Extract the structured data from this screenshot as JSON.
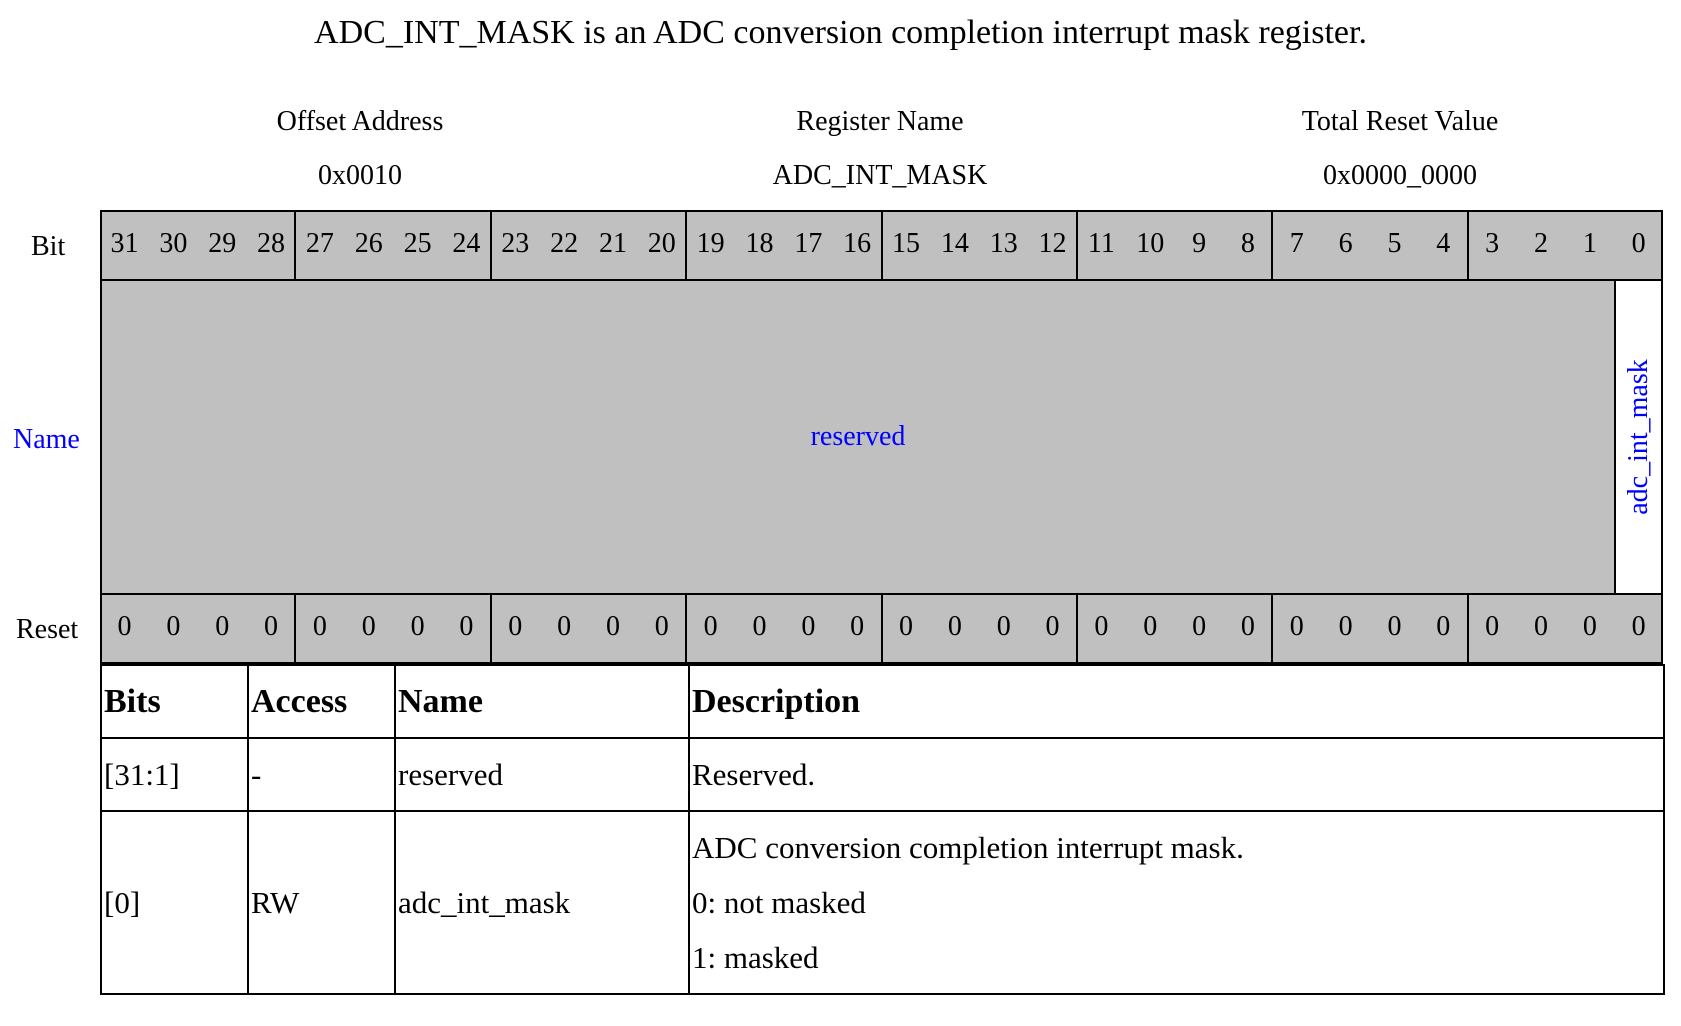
{
  "title": "ADC_INT_MASK is an ADC conversion completion interrupt mask register.",
  "header": {
    "offset_label": "Offset Address",
    "offset_value": "0x0010",
    "name_label": "Register Name",
    "name_value": "ADC_INT_MASK",
    "reset_label": "Total Reset Value",
    "reset_value": "0x0000_0000"
  },
  "row_labels": {
    "bit": "Bit",
    "name": "Name",
    "reset": "Reset"
  },
  "bits": [
    "31",
    "30",
    "29",
    "28",
    "27",
    "26",
    "25",
    "24",
    "23",
    "22",
    "21",
    "20",
    "19",
    "18",
    "17",
    "16",
    "15",
    "14",
    "13",
    "12",
    "11",
    "10",
    "9",
    "8",
    "7",
    "6",
    "5",
    "4",
    "3",
    "2",
    "1",
    "0"
  ],
  "reset_bits": [
    "0",
    "0",
    "0",
    "0",
    "0",
    "0",
    "0",
    "0",
    "0",
    "0",
    "0",
    "0",
    "0",
    "0",
    "0",
    "0",
    "0",
    "0",
    "0",
    "0",
    "0",
    "0",
    "0",
    "0",
    "0",
    "0",
    "0",
    "0",
    "0",
    "0",
    "0",
    "0"
  ],
  "fields": {
    "reserved": "reserved",
    "bit0": "adc_int_mask"
  },
  "name_color": "#0000ff",
  "cell_fill": "#c0c0c0",
  "table": {
    "headers": [
      "Bits",
      "Access",
      "Name",
      "Description"
    ],
    "rows": [
      {
        "bits": "[31:1]",
        "access": "-",
        "name": "reserved",
        "description": [
          "Reserved."
        ]
      },
      {
        "bits": "[0]",
        "access": "RW",
        "name": "adc_int_mask",
        "description": [
          "ADC conversion completion interrupt mask.",
          "0: not masked",
          "1: masked"
        ]
      }
    ]
  }
}
